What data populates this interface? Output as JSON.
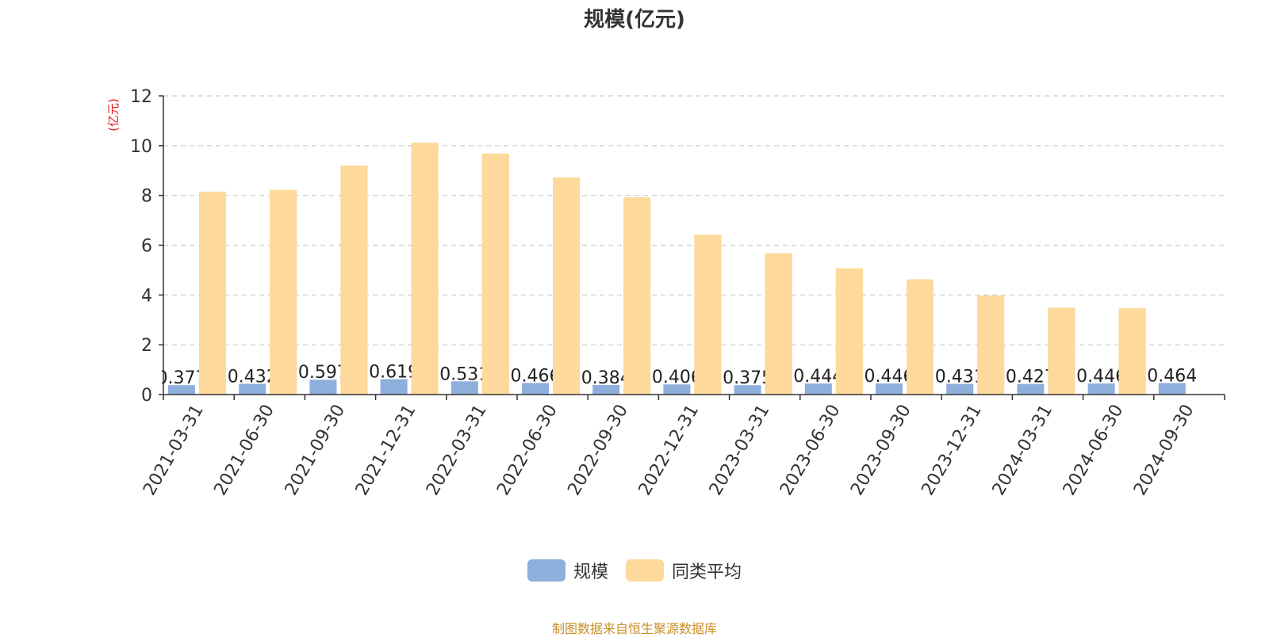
{
  "chart_data": {
    "type": "bar",
    "title": "规模(亿元)",
    "ylabel": "(亿元)",
    "xlabel": "",
    "ylim": [
      0,
      12
    ],
    "yticks": [
      0,
      2,
      4,
      6,
      8,
      10,
      12
    ],
    "grid": true,
    "legend_position": "bottom-center",
    "categories": [
      "2021-03-31",
      "2021-06-30",
      "2021-09-30",
      "2021-12-31",
      "2022-03-31",
      "2022-06-30",
      "2022-09-30",
      "2022-12-31",
      "2023-03-31",
      "2023-06-30",
      "2023-09-30",
      "2023-12-31",
      "2024-03-31",
      "2024-06-30",
      "2024-09-30"
    ],
    "series": [
      {
        "name": "规模",
        "color": "#8eafdc",
        "values": [
          0.377,
          0.432,
          0.597,
          0.619,
          0.531,
          0.466,
          0.384,
          0.406,
          0.375,
          0.444,
          0.446,
          0.431,
          0.427,
          0.446,
          0.464
        ],
        "labels": [
          "0.377",
          "0.432",
          "0.597",
          "0.619",
          "0.531",
          "0.466",
          "0.384",
          "0.406",
          "0.375",
          "0.444",
          "0.446",
          "0.431",
          "0.427",
          "0.446",
          "0.464"
        ]
      },
      {
        "name": "同类平均",
        "color": "#fdd99b",
        "values": [
          8.15,
          8.22,
          9.2,
          10.12,
          9.68,
          8.72,
          7.92,
          6.42,
          5.68,
          5.07,
          4.63,
          3.98,
          3.49,
          3.47,
          null
        ]
      }
    ]
  },
  "legend": [
    {
      "label": "规模",
      "color": "#8eafdc"
    },
    {
      "label": "同类平均",
      "color": "#fdd99b"
    }
  ],
  "source_note": "制图数据来自恒生聚源数据库",
  "colors": {
    "axis": "#333333",
    "grid": "#cccccc",
    "ylabel": "#e02020"
  }
}
